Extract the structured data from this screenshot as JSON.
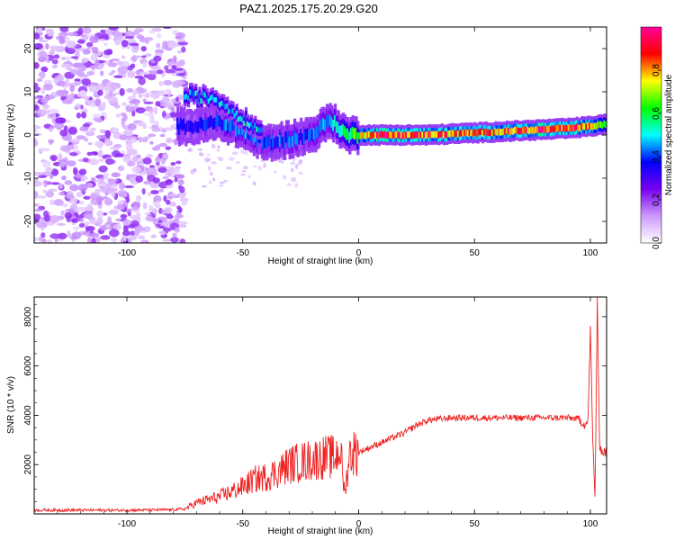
{
  "figure": {
    "title": "PAZ1.2025.175.20.29.G20"
  },
  "chart_data": [
    {
      "type": "heatmap",
      "xlabel": "Height of straight line (km)",
      "ylabel": "Frequency (Hz)",
      "xlim": [
        -140,
        107
      ],
      "ylim": [
        -25,
        25
      ],
      "x_ticks": [
        -100,
        -50,
        0,
        50,
        100
      ],
      "y_ticks": [
        -20,
        -10,
        0,
        10,
        20
      ],
      "colorbar": {
        "label": "Normalized spectral amplitude",
        "range": [
          0,
          1
        ],
        "ticks": [
          "0.0",
          "0.2",
          "0.4",
          "0.6",
          "0.8"
        ],
        "colormap": [
          "#ffffff",
          "#cc99ff",
          "#7700ee",
          "#0000ff",
          "#00ffff",
          "#00ff00",
          "#ffff00",
          "#ff0000",
          "#ff0099"
        ]
      },
      "main_tone_track": [
        {
          "x": -78,
          "freq": 2.0,
          "amp": 0.35
        },
        {
          "x": -70,
          "freq": 2.0,
          "amp": 0.35
        },
        {
          "x": -60,
          "freq": 3.0,
          "amp": 0.4
        },
        {
          "x": -50,
          "freq": 1.0,
          "amp": 0.45
        },
        {
          "x": -40,
          "freq": -2.0,
          "amp": 0.4
        },
        {
          "x": -30,
          "freq": -1.0,
          "amp": 0.4
        },
        {
          "x": -20,
          "freq": 0.0,
          "amp": 0.4
        },
        {
          "x": -12,
          "freq": 3.5,
          "amp": 0.5
        },
        {
          "x": -5,
          "freq": 0.0,
          "amp": 0.55
        },
        {
          "x": 10,
          "freq": 0.0,
          "amp": 0.9
        },
        {
          "x": 30,
          "freq": 0.0,
          "amp": 0.85
        },
        {
          "x": 50,
          "freq": 0.5,
          "amp": 0.8
        },
        {
          "x": 70,
          "freq": 1.0,
          "amp": 0.85
        },
        {
          "x": 90,
          "freq": 1.5,
          "amp": 0.9
        },
        {
          "x": 100,
          "freq": 2.0,
          "amp": 0.8
        },
        {
          "x": 107,
          "freq": 2.5,
          "amp": 0.6
        }
      ],
      "upper_branch": [
        {
          "x": -75,
          "freq": 9.0
        },
        {
          "x": -62,
          "freq": 8.5
        },
        {
          "x": -55,
          "freq": 6.0
        },
        {
          "x": -48,
          "freq": 3.0
        },
        {
          "x": -42,
          "freq": 1.0
        }
      ],
      "noise_region_x": [
        -140,
        -75
      ]
    },
    {
      "type": "line",
      "xlabel": "Height of straight line (km)",
      "ylabel": "SNR (10 * v/v)",
      "xlim": [
        -140,
        107
      ],
      "ylim": [
        0,
        8800
      ],
      "x_ticks": [
        -100,
        -50,
        0,
        50,
        100
      ],
      "y_ticks": [
        2000,
        4000,
        6000,
        8000
      ],
      "color": "#ee2222",
      "series": [
        {
          "x": [
            -140,
            -120,
            -100,
            -90,
            -80,
            -75,
            -70,
            -60,
            -50,
            -45,
            -40,
            -35,
            -30,
            -25,
            -20,
            -15,
            -10,
            -8,
            -6,
            -4,
            -2,
            0,
            5,
            10,
            15,
            20,
            25,
            30,
            35,
            40,
            50,
            60,
            70,
            80,
            90,
            95,
            98,
            99,
            100,
            101,
            102,
            103,
            104,
            105,
            107
          ],
          "y": [
            150,
            150,
            150,
            160,
            170,
            200,
            450,
            700,
            1100,
            1400,
            1500,
            1700,
            2000,
            2100,
            2200,
            2300,
            2300,
            2700,
            800,
            2400,
            2500,
            2500,
            2700,
            2900,
            3100,
            3300,
            3600,
            3800,
            3850,
            3900,
            3900,
            3900,
            3900,
            3900,
            3900,
            3850,
            3600,
            3800,
            7500,
            3000,
            700,
            8600,
            2800,
            2500,
            2500
          ]
        }
      ]
    }
  ]
}
